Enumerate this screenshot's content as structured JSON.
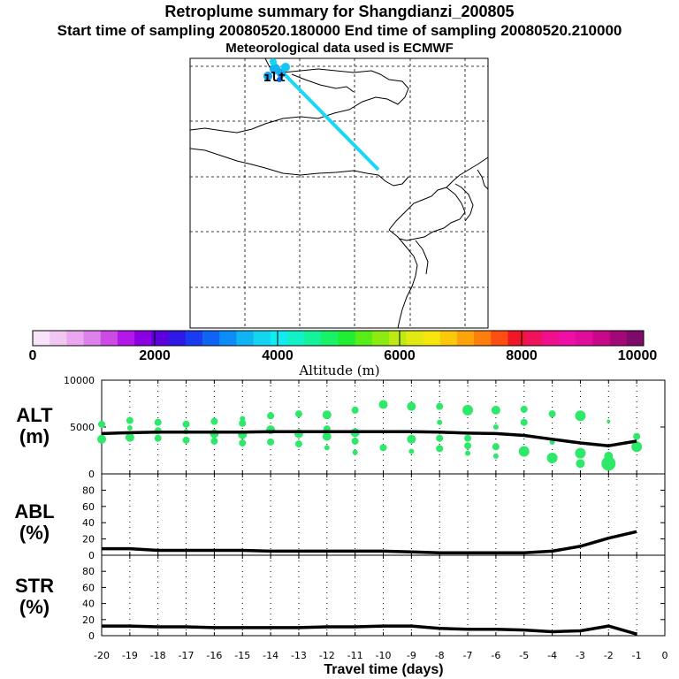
{
  "header": {
    "title": "Retroplume summary for Shangdianzi_200805",
    "sampling_line": "Start time of sampling 20080520.180000     End time of sampling 20080520.210000",
    "met_line": "Meteorological data used is ECMWF"
  },
  "colors": {
    "plume": "#1ad7f3",
    "scatter": "#2ee86a",
    "line": "#000000"
  },
  "colorbar": {
    "label": "Altitude (m)",
    "ticks": [
      "0",
      "2000",
      "4000",
      "6000",
      "8000",
      "10000"
    ],
    "colors": [
      "#f8e4f8",
      "#f2c6f2",
      "#eaa6ee",
      "#dc80ea",
      "#cc4ae6",
      "#b418e8",
      "#8a00e0",
      "#5c00dc",
      "#3018e6",
      "#1a3cf0",
      "#1064f4",
      "#0c8cf6",
      "#10b4f4",
      "#14d4f0",
      "#10ecf0",
      "#12f0c8",
      "#14f29a",
      "#18f266",
      "#20ee32",
      "#56ee16",
      "#8cec12",
      "#bcea12",
      "#e2e812",
      "#f6e60e",
      "#fcc80c",
      "#fca40c",
      "#fc7e0c",
      "#fc4e10",
      "#f01828",
      "#f0125c",
      "#f0108c",
      "#ee10a6",
      "#e00c9a",
      "#c8088a",
      "#a40878",
      "#7e0a6a"
    ]
  },
  "map_labels": {
    "release_marks": "ılt"
  },
  "chart_data": [
    {
      "type": "scatter+line",
      "panel": "ALT",
      "ylabel": "ALT (m)",
      "ylim": [
        0,
        10000
      ],
      "yticks": [
        "10000",
        "5000",
        "0"
      ],
      "ytick_values": [
        10000,
        5000,
        0
      ],
      "line": {
        "x": [
          -20,
          -19,
          -18,
          -17,
          -16,
          -15,
          -14,
          -13,
          -12,
          -11,
          -10,
          -9,
          -8,
          -7,
          -6,
          -5,
          -4,
          -3,
          -2,
          -1
        ],
        "y": [
          4300,
          4400,
          4450,
          4450,
          4450,
          4450,
          4500,
          4500,
          4500,
          4500,
          4500,
          4500,
          4450,
          4350,
          4300,
          4100,
          3700,
          3300,
          3000,
          3500
        ]
      },
      "points": [
        {
          "x": -20,
          "y": 5300,
          "s": 4
        },
        {
          "x": -20,
          "y": 3700,
          "s": 5
        },
        {
          "x": -19,
          "y": 5700,
          "s": 4
        },
        {
          "x": -19,
          "y": 4900,
          "s": 3
        },
        {
          "x": -19,
          "y": 3900,
          "s": 5
        },
        {
          "x": -18,
          "y": 5500,
          "s": 4
        },
        {
          "x": -18,
          "y": 4600,
          "s": 4
        },
        {
          "x": -18,
          "y": 3800,
          "s": 4
        },
        {
          "x": -17,
          "y": 5300,
          "s": 4
        },
        {
          "x": -17,
          "y": 4500,
          "s": 3
        },
        {
          "x": -17,
          "y": 3600,
          "s": 4
        },
        {
          "x": -16,
          "y": 5600,
          "s": 4
        },
        {
          "x": -16,
          "y": 4300,
          "s": 5
        },
        {
          "x": -16,
          "y": 3500,
          "s": 4
        },
        {
          "x": -15,
          "y": 5900,
          "s": 3
        },
        {
          "x": -15,
          "y": 5400,
          "s": 4
        },
        {
          "x": -15,
          "y": 4200,
          "s": 5
        },
        {
          "x": -15,
          "y": 3300,
          "s": 4
        },
        {
          "x": -14,
          "y": 6200,
          "s": 4
        },
        {
          "x": -14,
          "y": 4700,
          "s": 5
        },
        {
          "x": -14,
          "y": 3400,
          "s": 4
        },
        {
          "x": -13,
          "y": 6400,
          "s": 4
        },
        {
          "x": -13,
          "y": 4300,
          "s": 5
        },
        {
          "x": -13,
          "y": 3200,
          "s": 4
        },
        {
          "x": -12,
          "y": 6300,
          "s": 5
        },
        {
          "x": -12,
          "y": 4800,
          "s": 4
        },
        {
          "x": -12,
          "y": 4000,
          "s": 5
        },
        {
          "x": -12,
          "y": 2800,
          "s": 3
        },
        {
          "x": -11,
          "y": 6800,
          "s": 4
        },
        {
          "x": -11,
          "y": 4400,
          "s": 5
        },
        {
          "x": -11,
          "y": 3500,
          "s": 4
        },
        {
          "x": -11,
          "y": 2300,
          "s": 3
        },
        {
          "x": -10,
          "y": 7400,
          "s": 5
        },
        {
          "x": -10,
          "y": 2800,
          "s": 4
        },
        {
          "x": -9,
          "y": 7200,
          "s": 5
        },
        {
          "x": -9,
          "y": 3700,
          "s": 5
        },
        {
          "x": -9,
          "y": 2400,
          "s": 3
        },
        {
          "x": -8,
          "y": 7200,
          "s": 4
        },
        {
          "x": -8,
          "y": 5500,
          "s": 3
        },
        {
          "x": -8,
          "y": 3800,
          "s": 4
        },
        {
          "x": -8,
          "y": 2700,
          "s": 4
        },
        {
          "x": -7,
          "y": 6800,
          "s": 6
        },
        {
          "x": -7,
          "y": 3800,
          "s": 4
        },
        {
          "x": -7,
          "y": 3000,
          "s": 4
        },
        {
          "x": -7,
          "y": 2200,
          "s": 3
        },
        {
          "x": -6,
          "y": 6800,
          "s": 5
        },
        {
          "x": -6,
          "y": 5000,
          "s": 3
        },
        {
          "x": -6,
          "y": 2900,
          "s": 4
        },
        {
          "x": -6,
          "y": 1900,
          "s": 3
        },
        {
          "x": -5,
          "y": 6900,
          "s": 4
        },
        {
          "x": -5,
          "y": 5500,
          "s": 4
        },
        {
          "x": -5,
          "y": 2400,
          "s": 6
        },
        {
          "x": -4,
          "y": 6400,
          "s": 4
        },
        {
          "x": -4,
          "y": 3400,
          "s": 3
        },
        {
          "x": -4,
          "y": 1700,
          "s": 6
        },
        {
          "x": -3,
          "y": 6200,
          "s": 6
        },
        {
          "x": -3,
          "y": 2200,
          "s": 6
        },
        {
          "x": -3,
          "y": 1100,
          "s": 5
        },
        {
          "x": -2,
          "y": 5600,
          "s": 2
        },
        {
          "x": -2,
          "y": 1900,
          "s": 5
        },
        {
          "x": -2,
          "y": 1100,
          "s": 8
        },
        {
          "x": -1,
          "y": 4000,
          "s": 4
        },
        {
          "x": -1,
          "y": 2900,
          "s": 6
        }
      ]
    },
    {
      "type": "line",
      "panel": "ABL",
      "ylabel": "ABL (%)",
      "ylim": [
        0,
        100
      ],
      "yticks": [
        "80",
        "60",
        "40",
        "20",
        "0"
      ],
      "ytick_values": [
        80,
        60,
        40,
        20,
        0
      ],
      "x": [
        -20,
        -19,
        -18,
        -17,
        -16,
        -15,
        -14,
        -13,
        -12,
        -11,
        -10,
        -9,
        -8,
        -7,
        -6,
        -5,
        -4,
        -3,
        -2,
        -1
      ],
      "y": [
        8,
        8,
        6,
        6,
        6,
        6,
        5,
        5,
        5,
        5,
        5,
        4,
        3,
        3,
        3,
        3,
        5,
        11,
        21,
        29
      ]
    },
    {
      "type": "line",
      "panel": "STR",
      "ylabel": "STR (%)",
      "ylim": [
        0,
        100
      ],
      "yticks": [
        "80",
        "60",
        "40",
        "20",
        "0"
      ],
      "ytick_values": [
        80,
        60,
        40,
        20,
        0
      ],
      "x": [
        -20,
        -19,
        -18,
        -17,
        -16,
        -15,
        -14,
        -13,
        -12,
        -11,
        -10,
        -9,
        -8,
        -7,
        -6,
        -5,
        -4,
        -3,
        -2,
        -1
      ],
      "y": [
        12,
        12,
        11,
        11,
        10,
        10,
        10,
        10,
        11,
        11,
        12,
        12,
        9,
        8,
        8,
        7,
        5,
        6,
        12,
        2
      ]
    }
  ],
  "x_axis": {
    "label": "Travel time (days)",
    "ticks": [
      "-20",
      "-19",
      "-18",
      "-17",
      "-16",
      "-15",
      "-14",
      "-13",
      "-12",
      "-11",
      "-10",
      "-9",
      "-8",
      "-7",
      "-6",
      "-5",
      "-4",
      "-3",
      "-2",
      "-1",
      "0"
    ],
    "tick_values": [
      -20,
      -19,
      -18,
      -17,
      -16,
      -15,
      -14,
      -13,
      -12,
      -11,
      -10,
      -9,
      -8,
      -7,
      -6,
      -5,
      -4,
      -3,
      -2,
      -1,
      0
    ]
  }
}
